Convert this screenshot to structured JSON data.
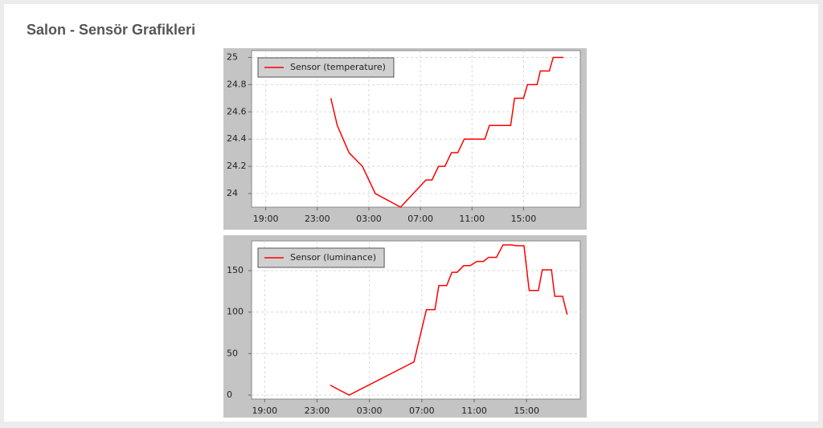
{
  "page_title": "Salon - Sensör Grafikleri",
  "chart_data": [
    {
      "type": "line",
      "grid": true,
      "legend": "top-left",
      "xlim": [
        17.9,
        43.4
      ],
      "ylim": [
        23.9,
        25.05
      ],
      "xticks": [
        {
          "value": 19,
          "label": "19:00"
        },
        {
          "value": 23,
          "label": "23:00"
        },
        {
          "value": 27,
          "label": "03:00"
        },
        {
          "value": 31,
          "label": "07:00"
        },
        {
          "value": 35,
          "label": "11:00"
        },
        {
          "value": 39,
          "label": "15:00"
        }
      ],
      "yticks": [
        24,
        24.2,
        24.4,
        24.6,
        24.8,
        25
      ],
      "series": [
        {
          "name": "Sensor (temperature)",
          "color": "#ff0000",
          "x": [
            24.05,
            24.55,
            25.46,
            26.5,
            27.5,
            29.46,
            31.43,
            31.9,
            32.4,
            32.9,
            33.4,
            33.9,
            34.4,
            36.0,
            36.35,
            38.0,
            38.3,
            39.0,
            39.3,
            40.05,
            40.3,
            41.0,
            41.3,
            42.1
          ],
          "values": [
            24.7,
            24.5,
            24.3,
            24.2,
            24.0,
            23.9,
            24.1,
            24.1,
            24.2,
            24.2,
            24.3,
            24.3,
            24.4,
            24.4,
            24.5,
            24.5,
            24.7,
            24.7,
            24.8,
            24.8,
            24.9,
            24.9,
            25.0,
            25.0
          ]
        }
      ]
    },
    {
      "type": "line",
      "grid": true,
      "legend": "top-left",
      "xlim": [
        18.0,
        43.1
      ],
      "ylim": [
        -4.8,
        185.8
      ],
      "xticks": [
        {
          "value": 19,
          "label": "19:00"
        },
        {
          "value": 23,
          "label": "23:00"
        },
        {
          "value": 27,
          "label": "03:00"
        },
        {
          "value": 31,
          "label": "07:00"
        },
        {
          "value": 35,
          "label": "11:00"
        },
        {
          "value": 39,
          "label": "15:00"
        }
      ],
      "yticks": [
        0,
        50,
        100,
        150
      ],
      "series": [
        {
          "name": "Sensor (luminance)",
          "color": "#ff0000",
          "x": [
            24.0,
            25.45,
            30.4,
            31.35,
            32.0,
            32.3,
            32.9,
            33.3,
            33.7,
            34.2,
            34.7,
            35.2,
            35.7,
            36.1,
            36.7,
            37.2,
            37.85,
            38.2,
            38.8,
            39.2,
            39.9,
            40.2,
            40.9,
            41.15,
            41.75,
            42.1
          ],
          "values": [
            12,
            0,
            40,
            103,
            103,
            132,
            132,
            148,
            148,
            156,
            156,
            161,
            161,
            166,
            166,
            181,
            181,
            180,
            180,
            126,
            126,
            151,
            151,
            119,
            119,
            97
          ]
        }
      ]
    }
  ]
}
